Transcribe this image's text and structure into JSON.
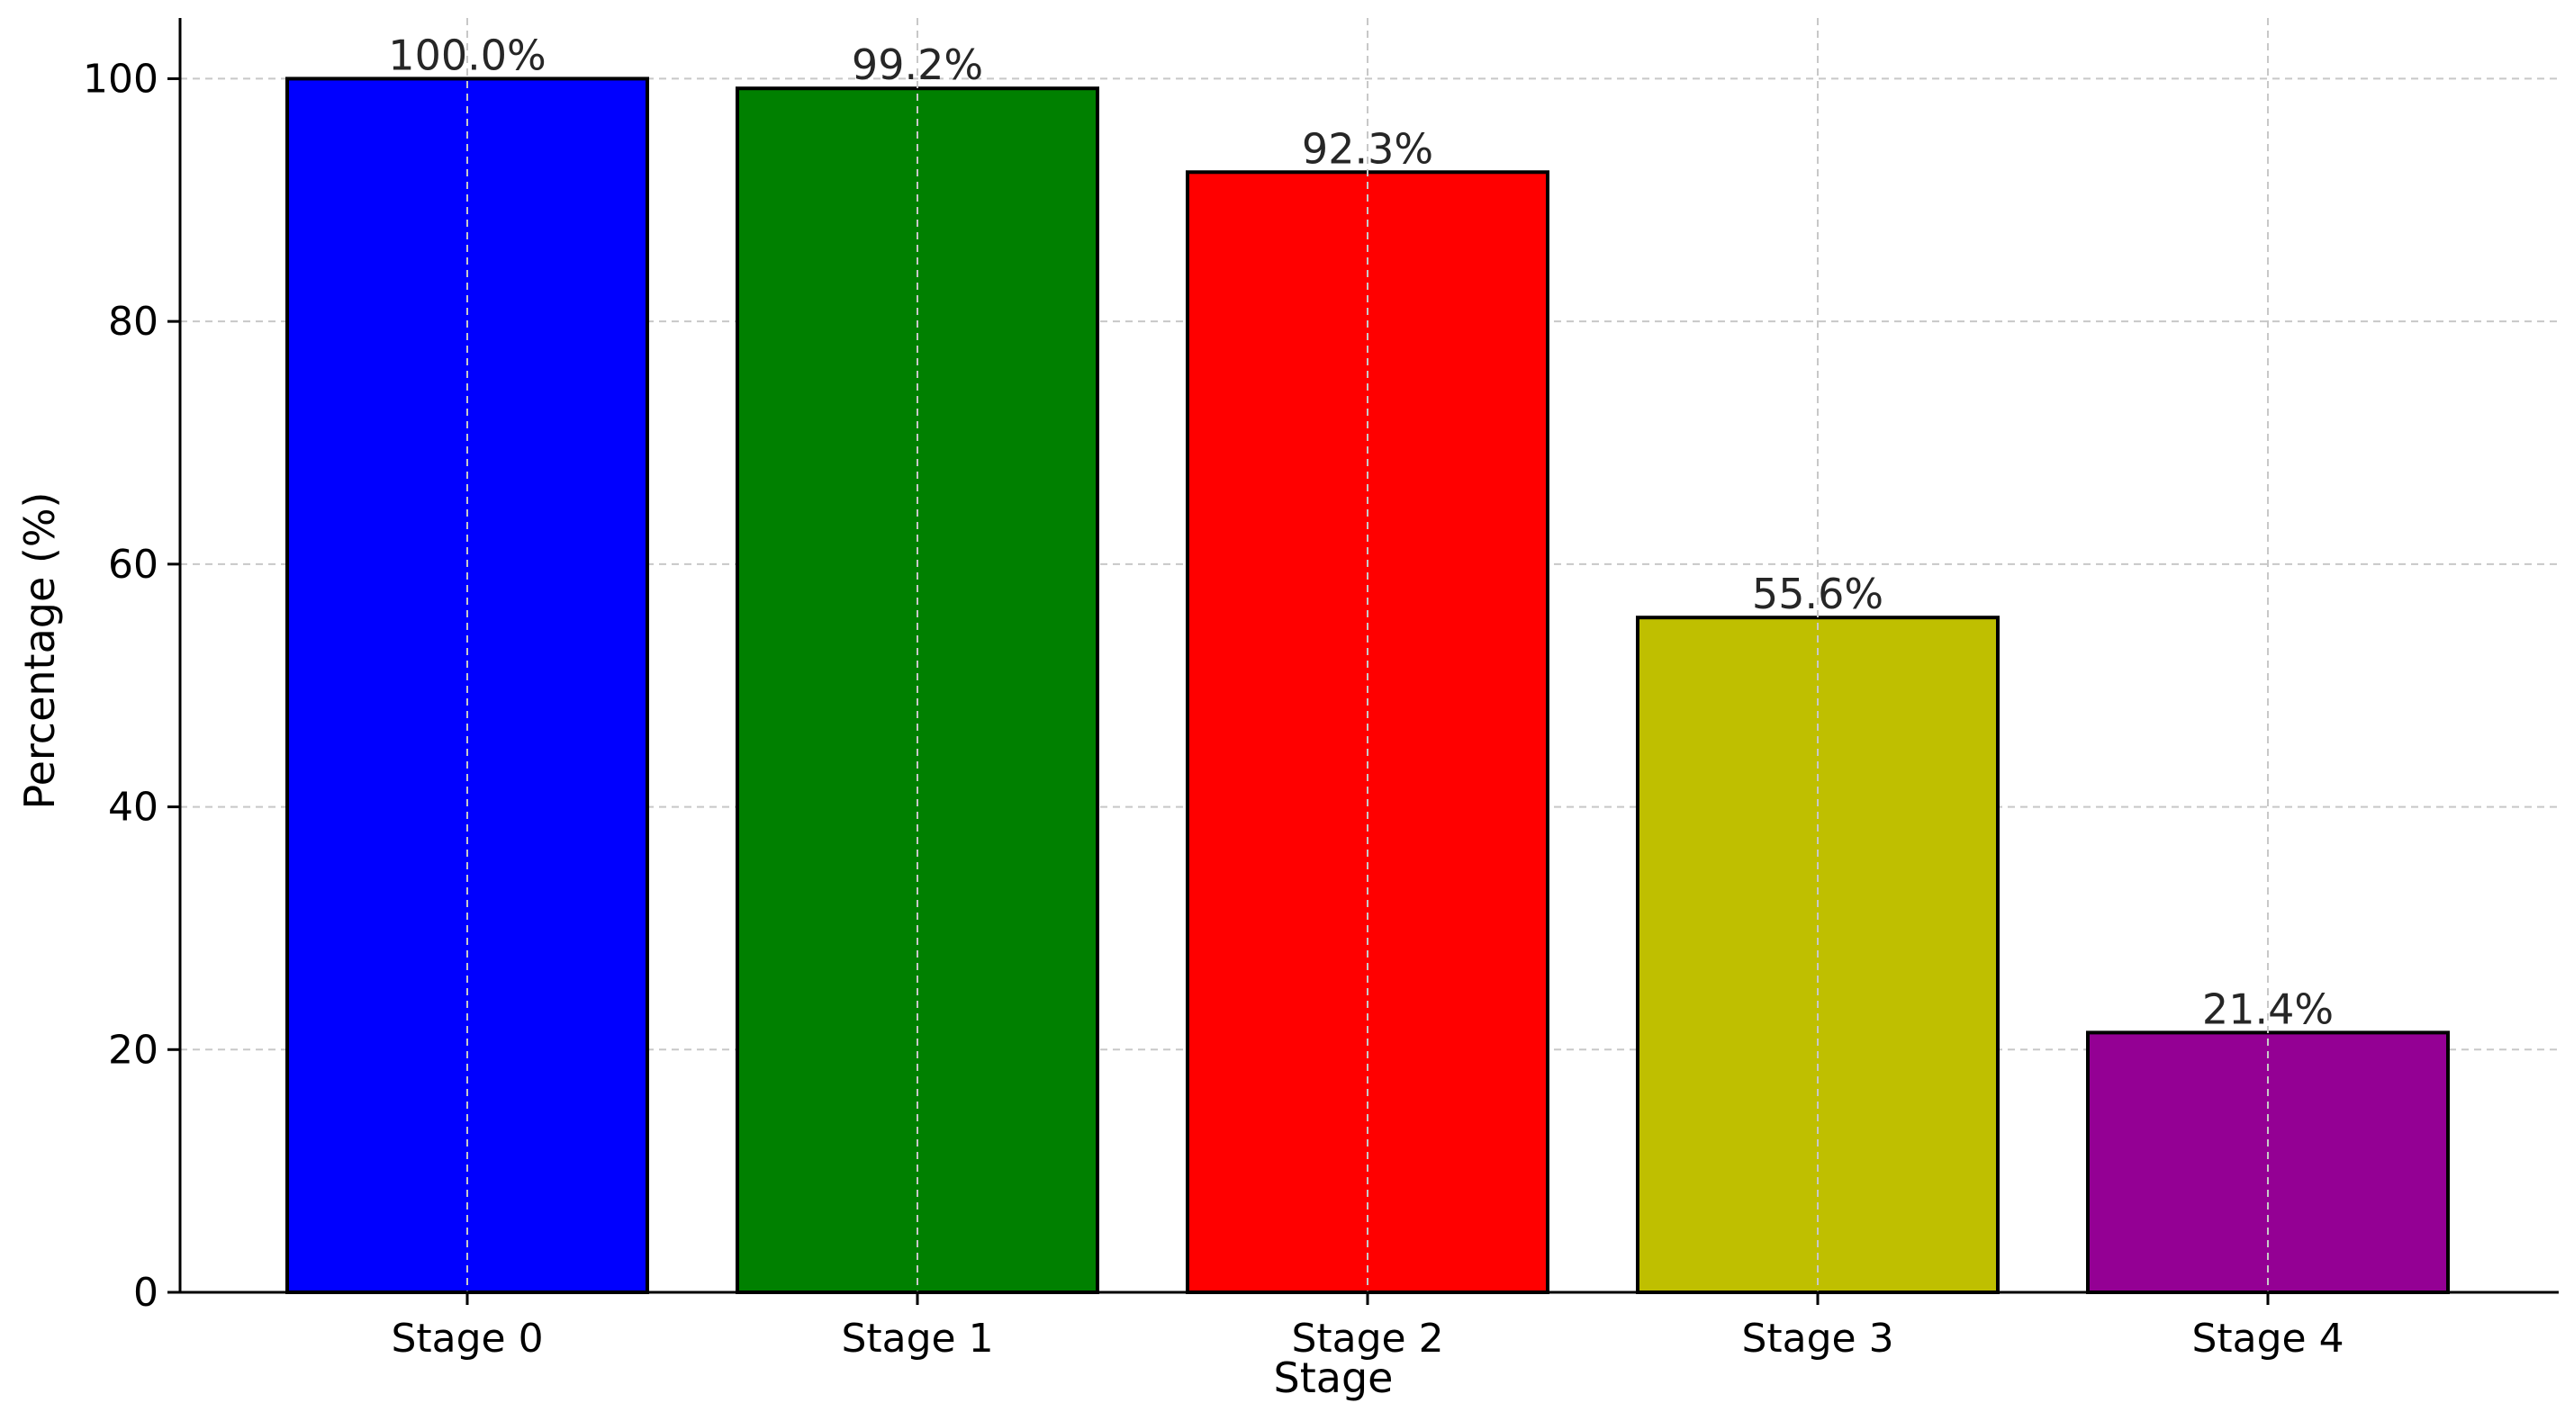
{
  "chart_data": {
    "type": "bar",
    "title": "",
    "xlabel": "Stage",
    "ylabel": "Percentage (%)",
    "categories": [
      "Stage 0",
      "Stage 1",
      "Stage 2",
      "Stage 3",
      "Stage 4"
    ],
    "values": [
      100.0,
      99.2,
      92.3,
      55.6,
      21.4
    ],
    "data_labels": [
      "100.0%",
      "99.2%",
      "92.3%",
      "55.6%",
      "21.4%"
    ],
    "bar_colors": [
      "#0000ff",
      "#008000",
      "#ff0000",
      "#bfbf00",
      "#940094"
    ],
    "ylim": [
      0,
      105
    ],
    "yticks": [
      0,
      20,
      40,
      60,
      80,
      100
    ],
    "grid": true,
    "legend": "none"
  }
}
